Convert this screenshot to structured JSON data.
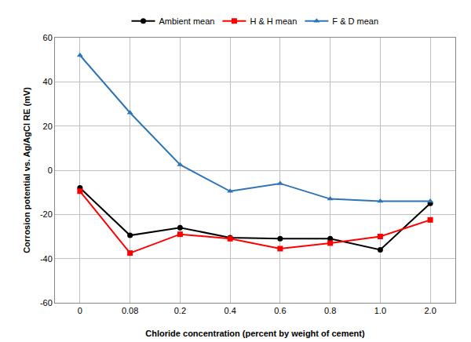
{
  "chart_data": {
    "type": "line",
    "x_label": "Chloride concentration (percent by weight of cement)",
    "y_label": "Corrosion potential vs. Ag/AgCl RE (mV)",
    "categories": [
      "0",
      "0.08",
      "0.2",
      "0.4",
      "0.6",
      "0.8",
      "1.0",
      "2.0"
    ],
    "series": [
      {
        "name": "Ambient mean",
        "color": "#000000",
        "marker": "circle",
        "values": [
          -8,
          -29.5,
          -26,
          -30.5,
          -31,
          -31,
          -36,
          -15
        ]
      },
      {
        "name": "H & H mean",
        "color": "#ff0000",
        "marker": "square",
        "values": [
          -9.5,
          -37.5,
          -29,
          -31,
          -35.5,
          -33,
          -30,
          -22.5
        ]
      },
      {
        "name": "F & D mean",
        "color": "#2e75b6",
        "marker": "triangle",
        "values": [
          52,
          26,
          2.5,
          -9.5,
          -6,
          -13,
          -14,
          -14
        ]
      }
    ],
    "ylim": [
      -60,
      60
    ],
    "yticks": [
      -60,
      -40,
      -20,
      0,
      20,
      40,
      60
    ],
    "grid": true,
    "legend": "top"
  }
}
